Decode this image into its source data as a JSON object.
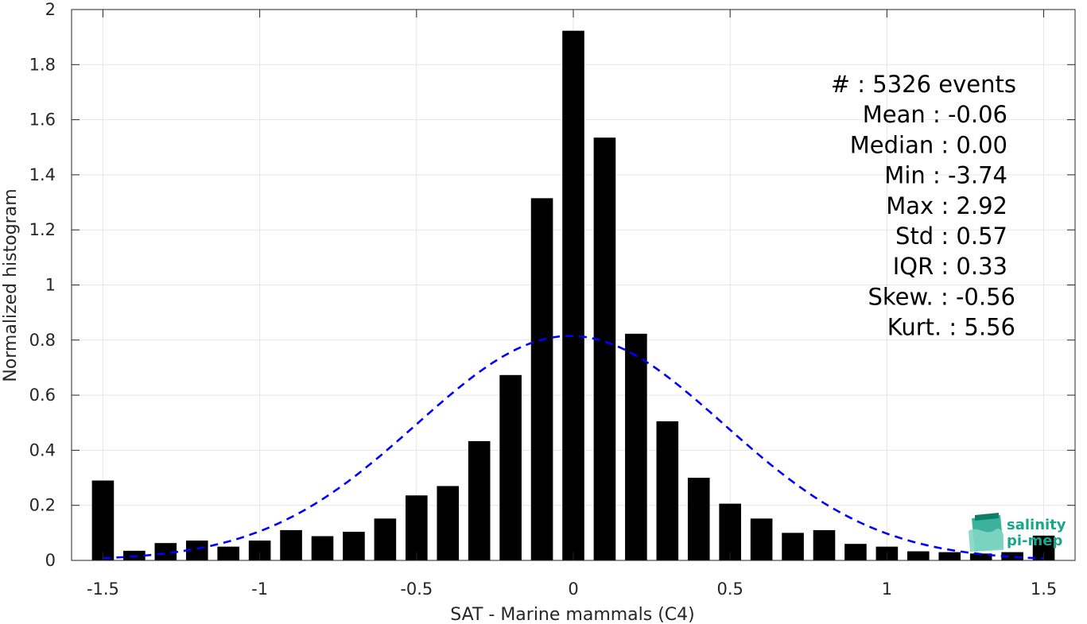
{
  "chart_data": {
    "type": "bar",
    "xlabel": "SAT - Marine mammals (C4)",
    "ylabel": "Normalized histogram",
    "xlim": [
      -1.6,
      1.6
    ],
    "ylim": [
      0,
      2
    ],
    "grid": true,
    "xticks": [
      -1.5,
      -1,
      -0.5,
      0,
      0.5,
      1,
      1.5
    ],
    "xtick_labels": [
      "-1.5",
      "-1",
      "-0.5",
      "0",
      "0.5",
      "1",
      "1.5"
    ],
    "yticks": [
      0,
      0.2,
      0.4,
      0.6,
      0.8,
      1,
      1.2,
      1.4,
      1.6,
      1.8,
      2
    ],
    "ytick_labels": [
      "0",
      "0.2",
      "0.4",
      "0.6",
      "0.8",
      "1",
      "1.2",
      "1.4",
      "1.6",
      "1.8",
      "2"
    ],
    "bar_width": 0.07,
    "bar_color": "#000000",
    "x": [
      -1.5,
      -1.4,
      -1.3,
      -1.2,
      -1.1,
      -1.0,
      -0.9,
      -0.8,
      -0.7,
      -0.6,
      -0.5,
      -0.4,
      -0.3,
      -0.2,
      -0.1,
      0.0,
      0.1,
      0.2,
      0.3,
      0.4,
      0.5,
      0.6,
      0.7,
      0.8,
      0.9,
      1.0,
      1.1,
      1.2,
      1.3,
      1.4,
      1.5
    ],
    "values": [
      0.29,
      0.035,
      0.063,
      0.072,
      0.05,
      0.072,
      0.11,
      0.088,
      0.104,
      0.152,
      0.236,
      0.27,
      0.433,
      0.673,
      1.315,
      1.923,
      1.535,
      0.823,
      0.505,
      0.3,
      0.206,
      0.152,
      0.1,
      0.11,
      0.06,
      0.05,
      0.033,
      0.03,
      0.025,
      0.03,
      0.09
    ],
    "fit": {
      "type": "gaussian",
      "mean": -0.01,
      "std": 0.49,
      "peak": 0.815,
      "color": "#0000ff",
      "style": "dashed",
      "x_range": [
        -1.5,
        1.5
      ]
    },
    "stats": [
      "#  : 5326 events",
      "Mean : -0.06",
      "Median : 0.00",
      "Min : -3.74",
      "Max : 2.92",
      "Std : 0.57",
      "IQR : 0.33",
      "Skew. : -0.56",
      "Kurt. : 5.56"
    ]
  },
  "logo": {
    "line1": "salinity",
    "line2": "pi-mep",
    "color": "#1aa58c"
  }
}
